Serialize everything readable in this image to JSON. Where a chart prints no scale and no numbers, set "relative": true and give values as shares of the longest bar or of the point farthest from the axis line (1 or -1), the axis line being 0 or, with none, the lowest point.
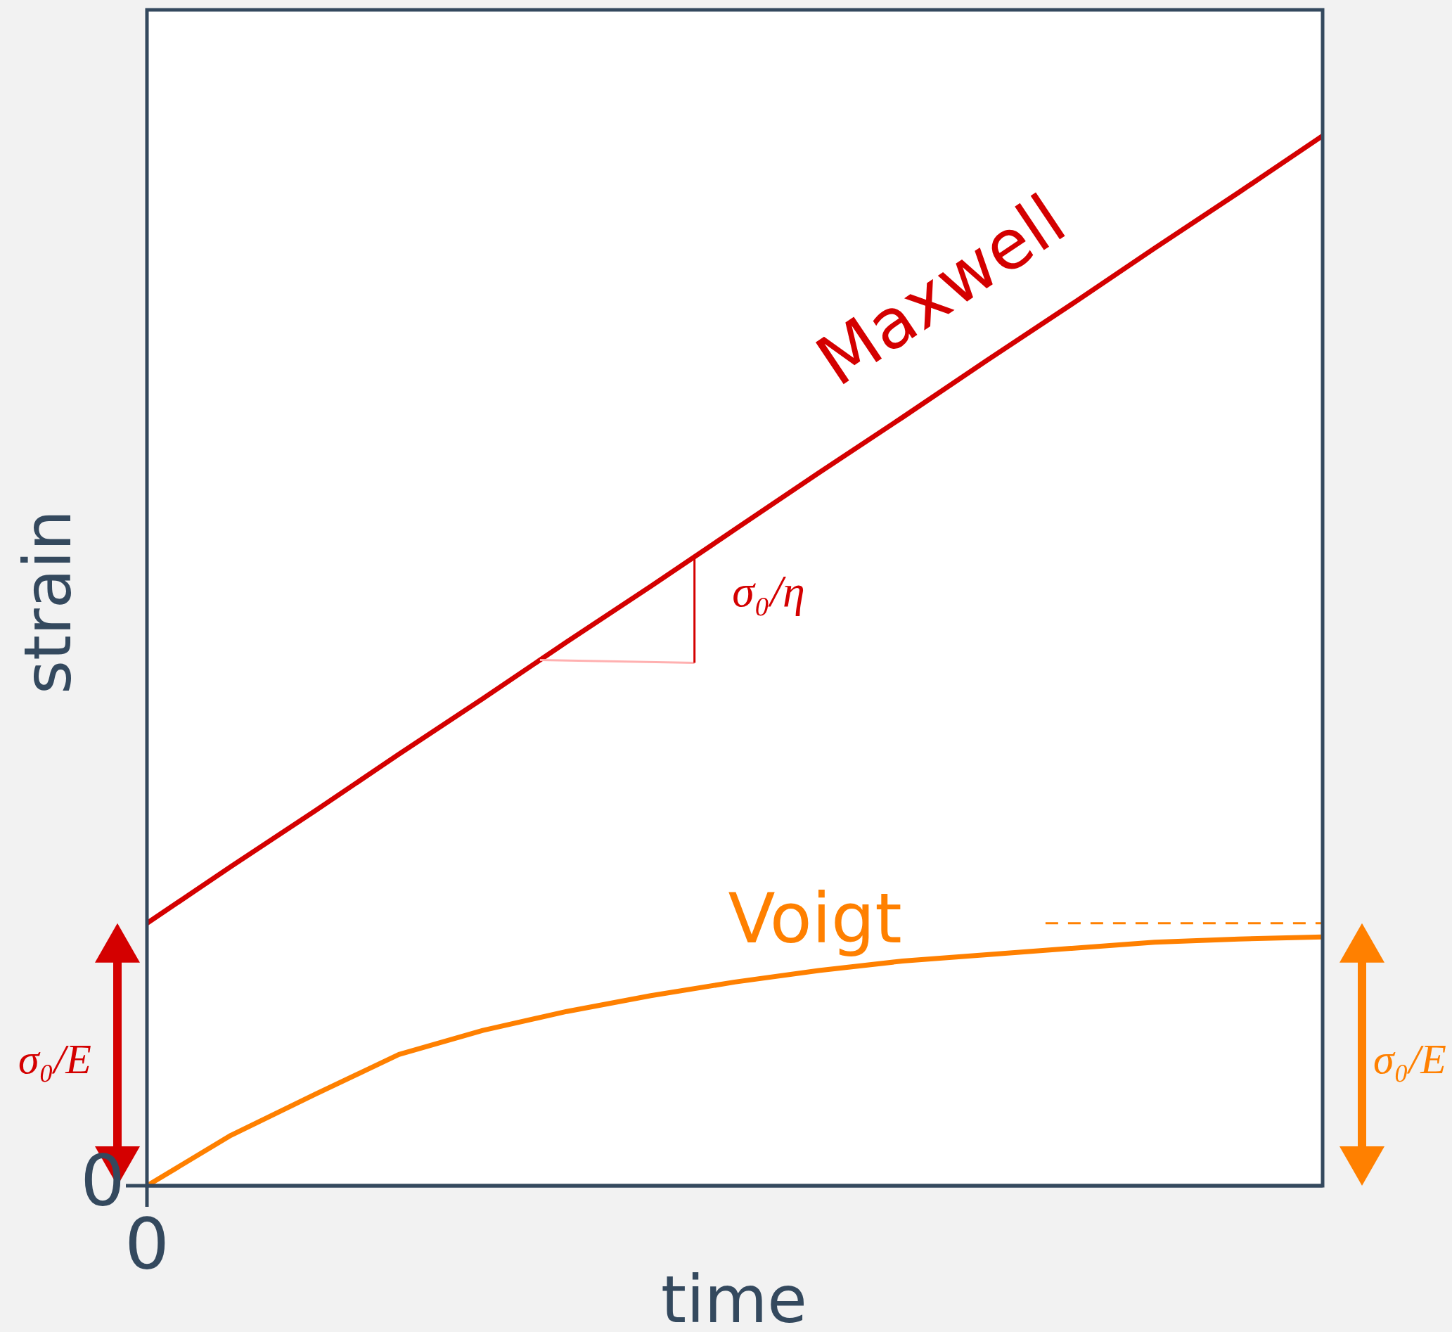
{
  "chart_data": {
    "type": "line",
    "relative": true,
    "xlabel": "time",
    "ylabel": "strain",
    "categories": [
      null,
      null,
      null,
      null,
      null,
      null,
      null,
      null,
      null,
      null,
      null,
      null,
      null,
      null,
      null
    ],
    "series": [
      {
        "name": "Maxwell",
        "color": "#d40000",
        "values": [
          0.25,
          0.304,
          0.357,
          0.411,
          0.464,
          0.518,
          0.571,
          0.625,
          0.679,
          0.732,
          0.786,
          0.839,
          0.893,
          0.946,
          1.0
        ]
      },
      {
        "name": "Voigt",
        "color": "#ff8000",
        "values": [
          0,
          0.048,
          0.087,
          0.125,
          0.148,
          0.166,
          0.181,
          0.194,
          0.205,
          0.214,
          0.22,
          0.226,
          0.232,
          0.235,
          0.237
        ]
      }
    ],
    "ref_lines": [
      {
        "axis": "y",
        "value": 0.25,
        "color": "#ff8000",
        "line_style": "dashed"
      }
    ],
    "annotations": [
      "0",
      "0",
      "σ₀/η",
      "σ₀/E",
      "σ₀/E"
    ],
    "legend": false,
    "marker": "none",
    "line_style": "solid"
  }
}
